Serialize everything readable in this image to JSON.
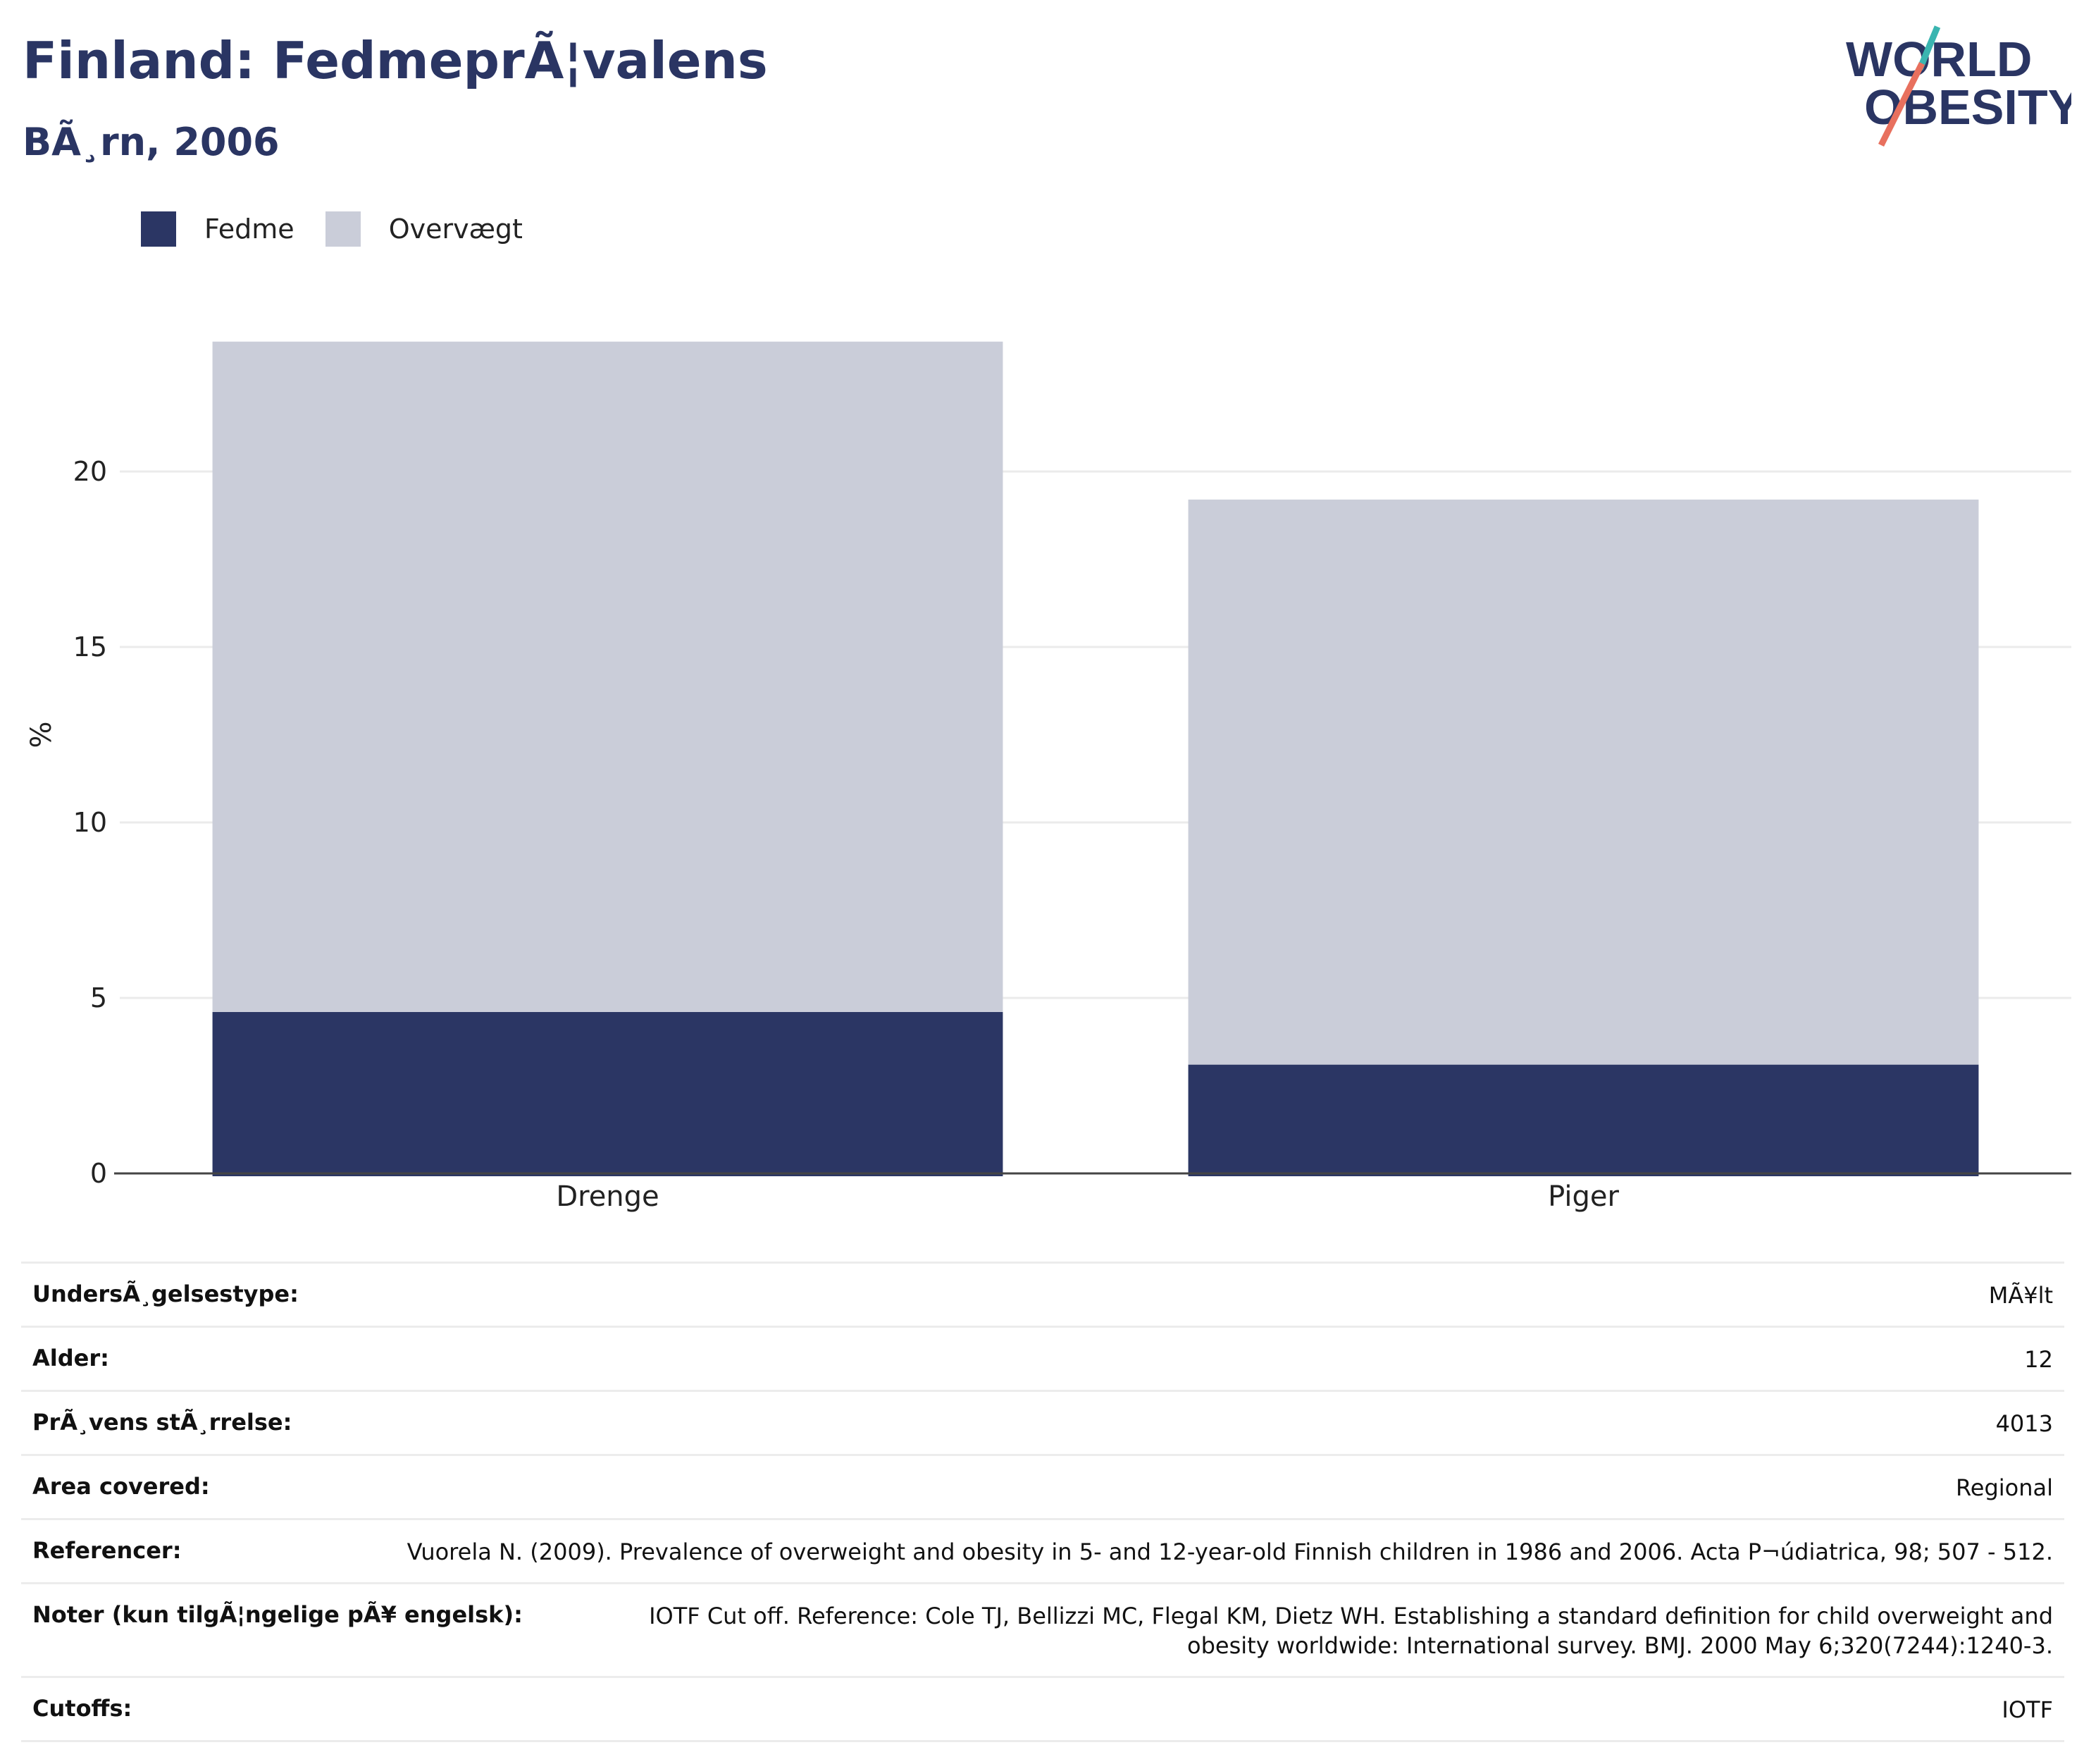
{
  "header": {
    "title": "Finland: FedmeprÃ¦valens",
    "subtitle": "BÃ¸rn, 2006"
  },
  "logo": {
    "line1": "WORLD",
    "line2": "OBESITY"
  },
  "legend": [
    {
      "label": "Fedme",
      "color": "#2b3664"
    },
    {
      "label": "Overvægt",
      "color": "#cacdd9"
    }
  ],
  "chart_data": {
    "type": "bar",
    "stacked": true,
    "categories": [
      "Drenge",
      "Piger"
    ],
    "series": [
      {
        "name": "Fedme",
        "values": [
          4.6,
          3.1
        ],
        "color": "#2b3664"
      },
      {
        "name": "Overvægt",
        "values": [
          19.1,
          16.1
        ],
        "color": "#cacdd9"
      }
    ],
    "xlabel": "",
    "ylabel": "%",
    "ylim": [
      0,
      25
    ],
    "yticks": [
      0,
      5,
      10,
      15,
      20
    ],
    "grid": true,
    "legend_position": "top-left"
  },
  "info_rows": [
    {
      "label": "UndersÃ¸gelsestype:",
      "value": "MÃ¥lt"
    },
    {
      "label": "Alder:",
      "value": "12"
    },
    {
      "label": "PrÃ¸vens stÃ¸rrelse:",
      "value": "4013"
    },
    {
      "label": "Area covered:",
      "value": "Regional"
    },
    {
      "label": "Referencer:",
      "value": "Vuorela N. (2009). Prevalence of overweight and obesity in 5- and 12-year-old Finnish children in 1986 and 2006. Acta P¬údiatrica, 98; 507 - 512."
    },
    {
      "label": "Noter (kun tilgÃ¦ngelige pÃ¥ engelsk):",
      "value": "IOTF Cut off. Reference: Cole TJ, Bellizzi MC, Flegal KM, Dietz WH. Establishing a standard definition for child overweight and obesity worldwide: International survey. BMJ. 2000 May 6;320(7244):1240-3."
    },
    {
      "label": "Cutoffs:",
      "value": "IOTF"
    }
  ]
}
